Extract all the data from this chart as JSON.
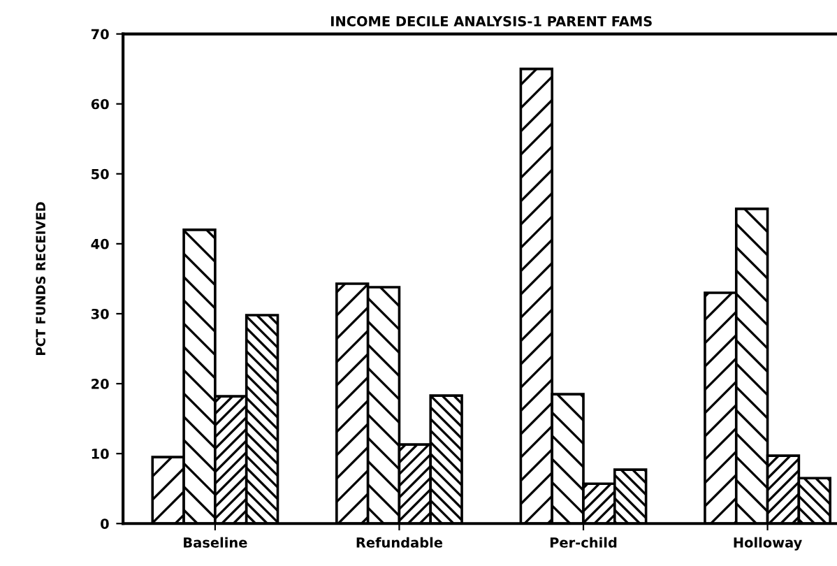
{
  "chart_data": {
    "type": "bar",
    "title": "INCOME DECILE ANALYSIS-1 PARENT FAMS",
    "ylabel": "PCT FUNDS RECEIVED",
    "categories": [
      "Baseline",
      "Refundable",
      "Per-child",
      "Holloway"
    ],
    "series": [
      {
        "color": "#000000",
        "values": [
          9.5,
          34.3,
          65,
          33
        ]
      },
      {
        "color": "#000000",
        "values": [
          42,
          33.8,
          18.5,
          45
        ]
      },
      {
        "color": "#000000",
        "values": [
          18.2,
          11.3,
          5.7,
          9.7
        ]
      },
      {
        "color": "#000000",
        "values": [
          29.8,
          18.3,
          7.7,
          6.5
        ]
      }
    ],
    "ylim": [
      0,
      70
    ],
    "yticks": [
      0,
      10,
      20,
      30,
      40,
      50,
      60,
      70
    ],
    "grid": false,
    "legend": false
  }
}
